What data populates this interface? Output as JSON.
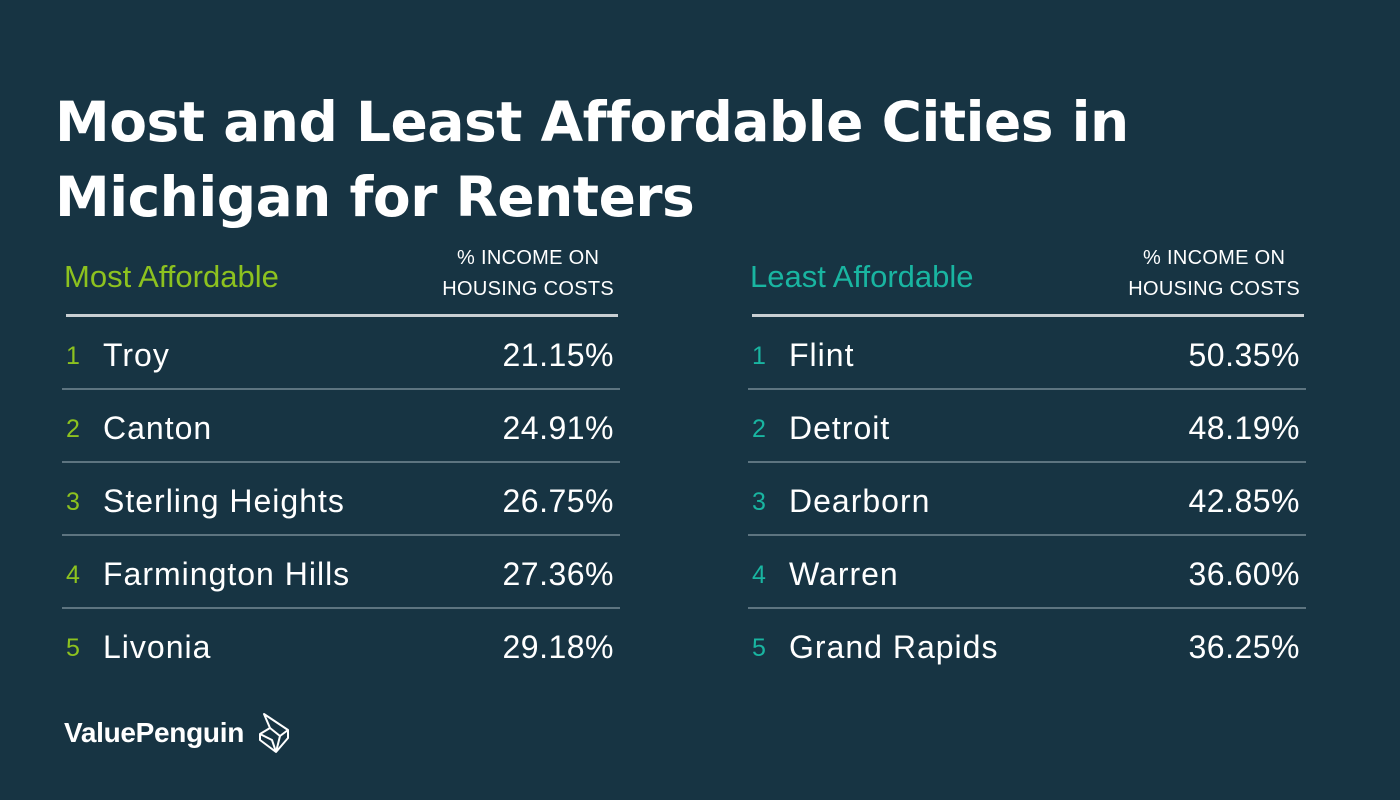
{
  "title": "Most and Least Affordable Cities in Michigan for Renters",
  "colors": {
    "background": "#173443",
    "most_accent": "#8dc21f",
    "least_accent": "#19b5a1",
    "text": "#ffffff"
  },
  "column_header": {
    "line1": "% INCOME ON",
    "line2": "HOUSING COSTS"
  },
  "brand": {
    "name": "ValuePenguin",
    "logo_icon": "valuepenguin-logo-icon"
  },
  "chart_data": [
    {
      "type": "table",
      "title": "Most Affordable",
      "column": "% INCOME ON HOUSING COSTS",
      "rows": [
        {
          "rank": "1",
          "city": "Troy",
          "value": 21.15,
          "label": "21.15%"
        },
        {
          "rank": "2",
          "city": "Canton",
          "value": 24.91,
          "label": "24.91%"
        },
        {
          "rank": "3",
          "city": "Sterling Heights",
          "value": 26.75,
          "label": "26.75%"
        },
        {
          "rank": "4",
          "city": "Farmington Hills",
          "value": 27.36,
          "label": "27.36%"
        },
        {
          "rank": "5",
          "city": "Livonia",
          "value": 29.18,
          "label": "29.18%"
        }
      ]
    },
    {
      "type": "table",
      "title": "Least Affordable",
      "column": "% INCOME ON HOUSING COSTS",
      "rows": [
        {
          "rank": "1",
          "city": "Flint",
          "value": 50.35,
          "label": "50.35%"
        },
        {
          "rank": "2",
          "city": "Detroit",
          "value": 48.19,
          "label": "48.19%"
        },
        {
          "rank": "3",
          "city": "Dearborn",
          "value": 42.85,
          "label": "42.85%"
        },
        {
          "rank": "4",
          "city": "Warren",
          "value": 36.6,
          "label": "36.60%"
        },
        {
          "rank": "5",
          "city": "Grand Rapids",
          "value": 36.25,
          "label": "36.25%"
        }
      ]
    }
  ]
}
